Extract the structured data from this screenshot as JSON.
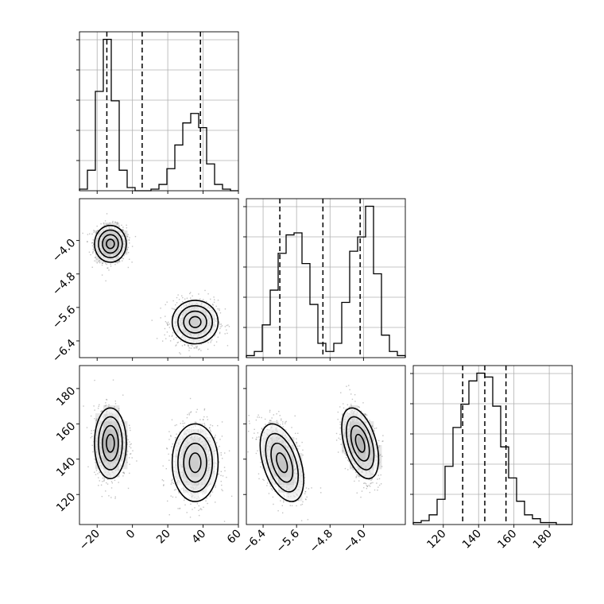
{
  "chart_data": {
    "type": "corner",
    "colors": {
      "line": "#000000",
      "grid": "#b0b0b0",
      "scatter": "#7a7a7a"
    },
    "grid": true,
    "parameters": [
      {
        "key": "p1",
        "range": [
          -30,
          60
        ],
        "ticks": [
          -20,
          0,
          20,
          40,
          60
        ],
        "tick_labels": [
          "−20",
          "0",
          "20",
          "40",
          "60"
        ],
        "quantiles": [
          -14.5,
          5.5,
          38.5
        ]
      },
      {
        "key": "p2",
        "range": [
          -6.8,
          -3.0
        ],
        "ticks": [
          -6.4,
          -5.6,
          -4.8,
          -4.0
        ],
        "tick_labels": [
          "−6.4",
          "−5.6",
          "−4.8",
          "−4.0"
        ],
        "quantiles": [
          -6.0,
          -4.97,
          -4.08
        ]
      },
      {
        "key": "p3",
        "range": [
          103,
          193
        ],
        "ticks": [
          120,
          140,
          160,
          180
        ],
        "tick_labels": [
          "120",
          "140",
          "160",
          "180"
        ],
        "quantiles": [
          131.0,
          143.5,
          155.5
        ]
      }
    ],
    "histograms": [
      {
        "param": "p1",
        "edges": [
          -30,
          -25.5,
          -21,
          -16.5,
          -12,
          -7.5,
          -3,
          1.5,
          6,
          10.5,
          15,
          19.5,
          24,
          28.5,
          33,
          37.5,
          42,
          46.5,
          51,
          55.5,
          60
        ],
        "counts": [
          1,
          13,
          63,
          96,
          57,
          13,
          2,
          0,
          0,
          1,
          4,
          14,
          29,
          43,
          49,
          40,
          17,
          4,
          1,
          0
        ]
      },
      {
        "param": "p2",
        "edges": [
          -6.8,
          -6.61,
          -6.42,
          -6.23,
          -6.04,
          -5.85,
          -5.66,
          -5.47,
          -5.28,
          -5.09,
          -4.9,
          -4.71,
          -4.52,
          -4.33,
          -4.14,
          -3.95,
          -3.76,
          -3.57,
          -3.38,
          -3.19,
          -3.0
        ],
        "counts": [
          1,
          3,
          16,
          33,
          51,
          60,
          61,
          46,
          26,
          7,
          3,
          7,
          27,
          52,
          59,
          74,
          41,
          11,
          3,
          1
        ]
      },
      {
        "param": "p3",
        "edges": [
          103,
          107.5,
          112,
          116.5,
          121,
          125.5,
          130,
          134.5,
          139,
          143.5,
          148,
          152.5,
          157,
          161.5,
          166,
          170.5,
          175,
          179.5,
          184,
          188.5,
          193
        ],
        "counts": [
          1,
          2,
          5,
          13,
          30,
          50,
          62,
          74,
          78,
          76,
          61,
          40,
          24,
          12,
          5,
          3,
          1,
          1,
          0,
          0
        ]
      }
    ],
    "modes": [
      {
        "p1": -12.5,
        "p2": -4.08,
        "p3": 149,
        "sx": 4.5,
        "sy": 0.22,
        "s3": 10,
        "r12": 0.0,
        "r13": 0.0,
        "r23": -0.45,
        "weight": 0.5
      },
      {
        "p1": 35.5,
        "p2": -5.95,
        "p3": 138,
        "sx": 6.5,
        "sy": 0.26,
        "s3": 11,
        "r12": 0.0,
        "r13": 0.0,
        "r23": -0.45,
        "weight": 0.5
      }
    ],
    "contour_levels_sigma": [
      0.5,
      1.0,
      1.5,
      2.0
    ]
  }
}
